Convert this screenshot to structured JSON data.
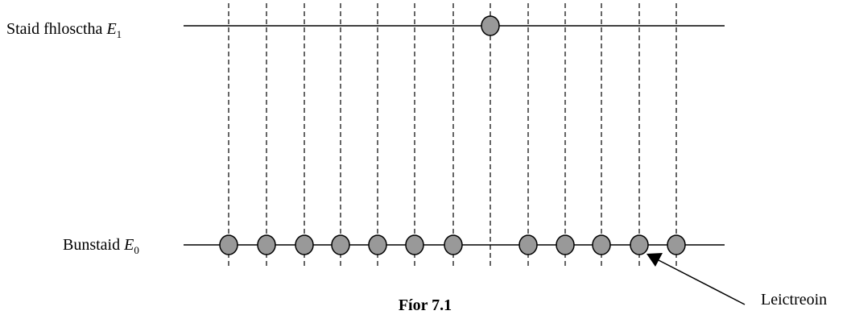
{
  "labels": {
    "excited_state": "Staid fhlosctha ",
    "excited_symbol": "E",
    "excited_subscript": "1",
    "ground_state": "Bunstaid ",
    "ground_symbol": "E",
    "ground_subscript": "0",
    "electron": "Leictreoin",
    "caption": "Fíor 7.1"
  },
  "colors": {
    "electron_fill": "#999999",
    "line": "#000000"
  },
  "levels": {
    "count_positions": 13,
    "ground_electrons": [
      1,
      1,
      1,
      1,
      1,
      1,
      1,
      0,
      1,
      1,
      1,
      1,
      1
    ],
    "excited_electrons": [
      0,
      0,
      0,
      0,
      0,
      0,
      0,
      1,
      0,
      0,
      0,
      0,
      0
    ]
  }
}
